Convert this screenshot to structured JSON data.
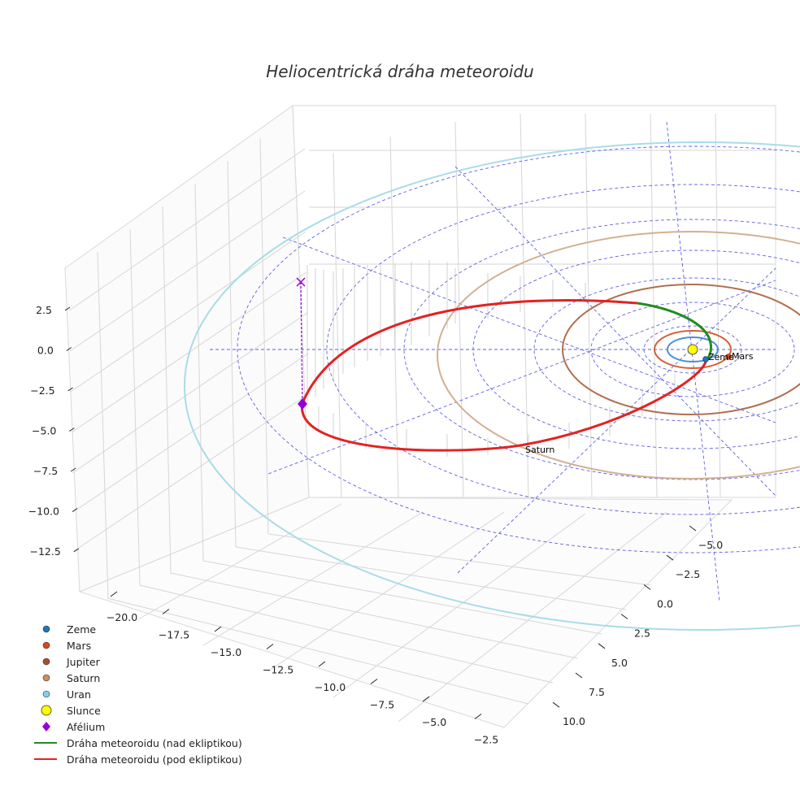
{
  "chart_data": {
    "type": "3d-orbit",
    "title": "Heliocentrická dráha meteoroidu",
    "axes": {
      "x": {
        "ticks": [
          "−20.0",
          "−17.5",
          "−15.0",
          "−12.5",
          "−10.0",
          "−7.5",
          "−5.0",
          "−2.5"
        ]
      },
      "y": {
        "ticks": [
          "−5.0",
          "−2.5",
          "0.0",
          "2.5",
          "5.0",
          "7.5",
          "10.0"
        ]
      },
      "z": {
        "ticks": [
          "2.5",
          "0.0",
          "−2.5",
          "−5.0",
          "−7.5",
          "−10.0",
          "−12.5"
        ]
      }
    },
    "planets": [
      {
        "name": "Zeme",
        "orbit_radius_au": 1.0,
        "label": "Zeme",
        "color": "#1f77b4",
        "orbit_color": "#4a90d9"
      },
      {
        "name": "Mars",
        "orbit_radius_au": 1.52,
        "label": "Mars",
        "color": "#d04a1e",
        "orbit_color": "#d35f3c"
      },
      {
        "name": "Jupiter",
        "orbit_radius_au": 5.2,
        "label": "",
        "color": "#a0522d",
        "orbit_color": "#b07050"
      },
      {
        "name": "Saturn",
        "orbit_radius_au": 9.58,
        "label": "Saturn",
        "color": "#cd8c5c",
        "orbit_color": "#d2b090"
      },
      {
        "name": "Uran",
        "orbit_radius_au": 19.2,
        "label": "",
        "color": "#87ceeb",
        "orbit_color": "#a8dce8"
      }
    ],
    "sun": {
      "name": "Slunce",
      "color": "#ffff00"
    },
    "aphelion": {
      "name": "Afélium",
      "color": "#9400d3"
    },
    "meteoroid_orbit": {
      "above_label": "Dráha meteoroidu (nad ekliptikou)",
      "above_color": "#228b22",
      "below_label": "Dráha meteoroidu (pod ekliptikou)",
      "below_color": "#e32222"
    }
  },
  "legend": [
    {
      "label": "Zeme",
      "kind": "dot",
      "color": "#1f77b4"
    },
    {
      "label": "Mars",
      "kind": "dot",
      "color": "#d04a1e"
    },
    {
      "label": "Jupiter",
      "kind": "dot",
      "color": "#a0522d"
    },
    {
      "label": "Saturn",
      "kind": "dot",
      "color": "#cd8c5c"
    },
    {
      "label": "Uran",
      "kind": "dot",
      "color": "#87ceeb"
    },
    {
      "label": "Slunce",
      "kind": "bigdot",
      "color": "#ffff00"
    },
    {
      "label": "Afélium",
      "kind": "diamond",
      "color": "#9400d3"
    },
    {
      "label": "Dráha meteoroidu (nad ekliptikou)",
      "kind": "line",
      "color": "#228b22"
    },
    {
      "label": "Dráha meteoroidu (pod ekliptikou)",
      "kind": "line",
      "color": "#e32222"
    }
  ]
}
